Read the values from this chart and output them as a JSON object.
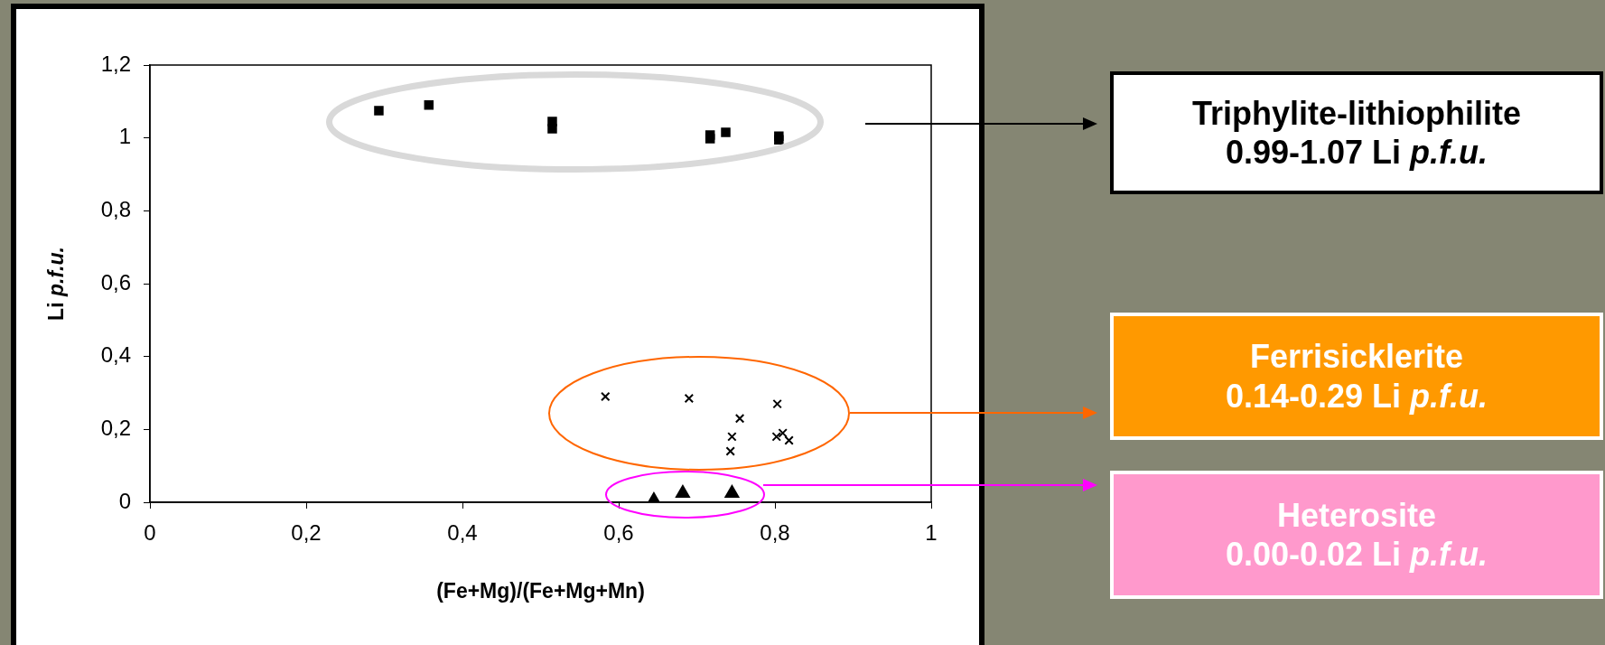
{
  "chart_data": {
    "type": "scatter",
    "xlabel": "(Fe+Mg)/(Fe+Mg+Mn)",
    "ylabel": "Li p.f.u.",
    "xlim": [
      0,
      1
    ],
    "xticks": [
      0,
      {
        "value": 0.2,
        "label": "0,2"
      },
      {
        "value": 0.4,
        "label": "0,4"
      },
      {
        "value": 0.6,
        "label": "0,6"
      },
      {
        "value": 0.8,
        "label": "0,8"
      },
      1
    ],
    "ylim": [
      0,
      1.2
    ],
    "yticks": [
      0,
      {
        "value": 0.2,
        "label": "0,2"
      },
      {
        "value": 0.4,
        "label": "0,4"
      },
      {
        "value": 0.6,
        "label": "0,6"
      },
      {
        "value": 0.8,
        "label": "0,8"
      },
      1,
      {
        "value": 1.2,
        "label": "1,2"
      }
    ],
    "grid": false,
    "legend": false,
    "series": [
      {
        "color": "#000000",
        "marker": "square",
        "x": [
          0.293,
          0.357,
          0.515,
          0.515,
          0.717,
          0.717,
          0.737,
          0.805,
          0.805
        ],
        "values": [
          1.075,
          1.09,
          1.045,
          1.025,
          1.008,
          0.998,
          1.015,
          1.005,
          0.995
        ]
      },
      {
        "color": "#000000",
        "marker": "cross",
        "x": [
          0.583,
          0.69,
          0.755,
          0.745,
          0.743,
          0.803,
          0.802,
          0.81,
          0.818
        ],
        "values": [
          0.29,
          0.285,
          0.23,
          0.18,
          0.14,
          0.27,
          0.18,
          0.19,
          0.17
        ]
      },
      {
        "color": "#000000",
        "marker": "triangle",
        "x": [
          0.645,
          0.682,
          0.745
        ],
        "values": [
          0.005,
          0.025,
          0.025
        ]
      }
    ],
    "annotations": [
      "Triphylite-lithiophilite 0.99-1.07 Li p.f.u.",
      "Ferrisicklerite 0.14-0.29 Li p.f.u.",
      "Heterosite 0.00-0.02 Li p.f.u."
    ]
  }
}
